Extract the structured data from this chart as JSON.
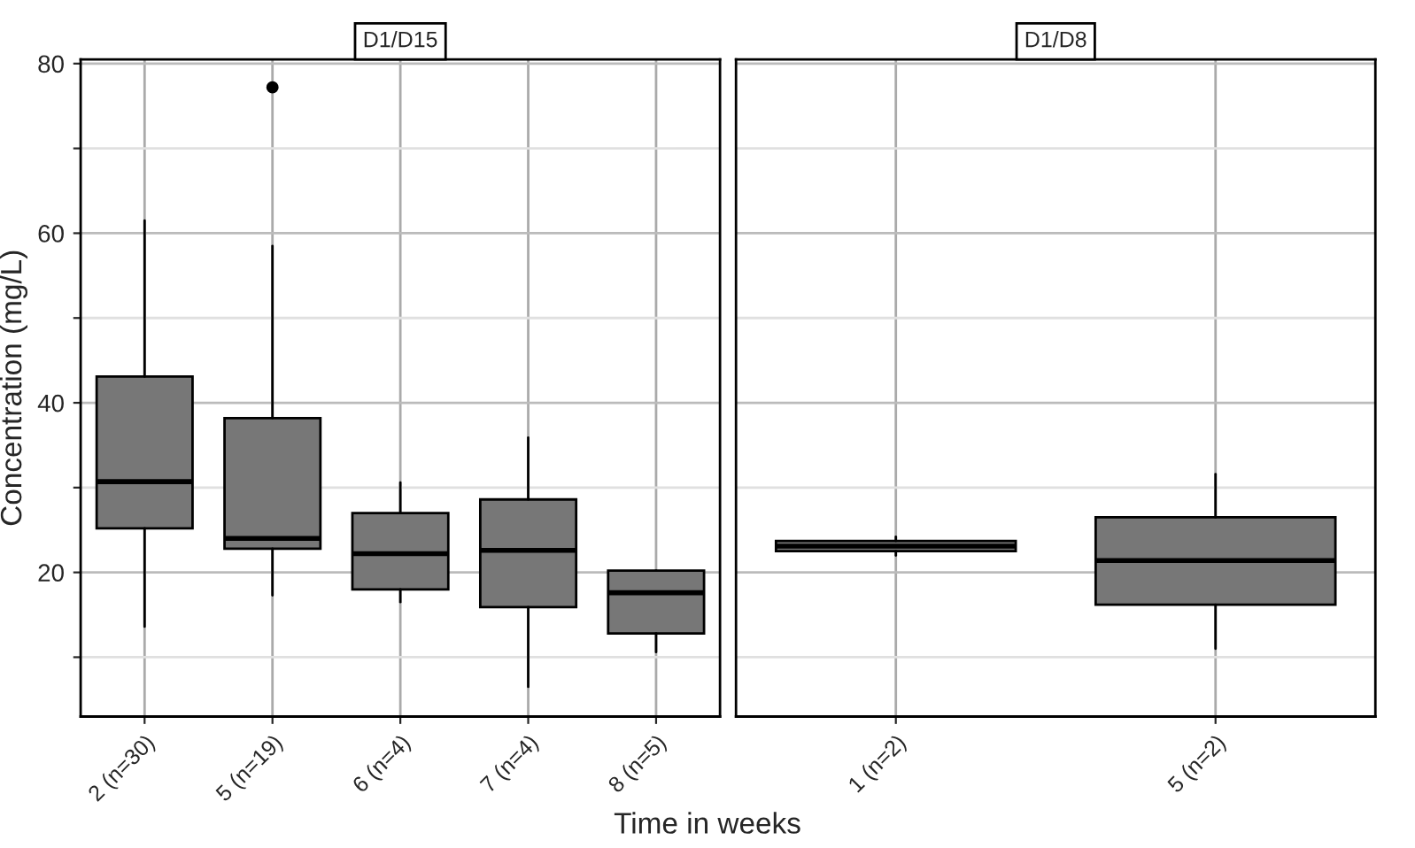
{
  "chart_data": [
    {
      "type": "box",
      "title": "D1/D15",
      "ylabel": "Concentration (mg/L)",
      "xlabel": "Time in weeks",
      "color": "#777777",
      "grid": true,
      "categories": [
        "2 (n=30)",
        "5 (n=19)",
        "6 (n=4)",
        "7 (n=4)",
        "8 (n=5)"
      ],
      "boxes": [
        {
          "low": 13.6,
          "q1": 25.2,
          "median": 30.7,
          "q3": 43.1,
          "high": 61.5
        },
        {
          "low": 17.3,
          "q1": 22.8,
          "median": 24.0,
          "q3": 38.2,
          "high": 58.5,
          "outliers": [
            77.2
          ]
        },
        {
          "low": 16.5,
          "q1": 18.0,
          "median": 22.2,
          "q3": 27.0,
          "high": 30.6
        },
        {
          "low": 6.5,
          "q1": 15.9,
          "median": 22.6,
          "q3": 28.6,
          "high": 35.9
        },
        {
          "low": 10.6,
          "q1": 12.8,
          "median": 17.6,
          "q3": 20.2,
          "high": 20.2
        }
      ],
      "ylim": [
        3,
        80.5
      ],
      "yticks": [
        {
          "value": 10,
          "label": null
        },
        20,
        {
          "value": 30,
          "label": null
        },
        40,
        {
          "value": 50,
          "label": null
        },
        60,
        {
          "value": 70,
          "label": null
        },
        80
      ]
    },
    {
      "type": "box",
      "title": "D1/D8",
      "color": "#777777",
      "grid": true,
      "tick_labels": "x",
      "categories": [
        "1 (n=2)",
        "5 (n=2)"
      ],
      "boxes": [
        {
          "low": 22.0,
          "q1": 22.5,
          "median": 23.1,
          "q3": 23.7,
          "high": 24.2
        },
        {
          "low": 11.0,
          "q1": 16.2,
          "median": 21.4,
          "q3": 26.5,
          "high": 31.6
        }
      ],
      "ylim": [
        3,
        80.5
      ],
      "yticks": [
        {
          "value": 10,
          "label": null
        },
        20,
        {
          "value": 30,
          "label": null
        },
        40,
        {
          "value": 50,
          "label": null
        },
        60,
        {
          "value": 70,
          "label": null
        },
        80
      ]
    }
  ]
}
